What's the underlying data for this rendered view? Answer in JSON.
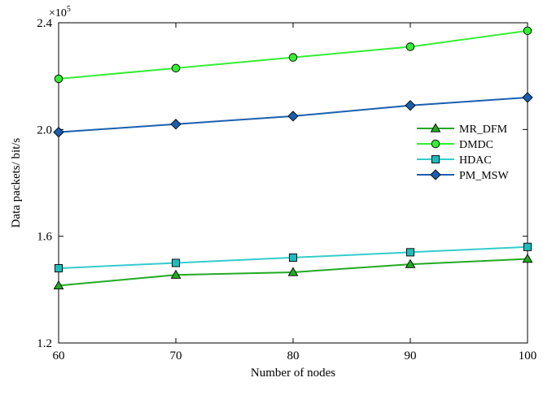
{
  "chart_data": {
    "type": "line",
    "title": "",
    "xlabel": "Number of nodes",
    "ylabel": "Data packets/ bit/s",
    "y_multiplier_base": "×10",
    "y_multiplier_exponent": "5",
    "x": [
      60,
      70,
      80,
      90,
      100
    ],
    "xlim": [
      60,
      100
    ],
    "ylim": [
      1.2,
      2.4
    ],
    "x_ticks": [
      "60",
      "70",
      "80",
      "90",
      "100"
    ],
    "y_ticks": [
      "1.2",
      "1.6",
      "2.0",
      "2.4"
    ],
    "y_tick_values": [
      1.2,
      1.6,
      2.0,
      2.4
    ],
    "grid": false,
    "legend_position": "right",
    "series": [
      {
        "name": "MR_DFM",
        "values": [
          1.415,
          1.455,
          1.465,
          1.495,
          1.515
        ],
        "color": "#22aa22",
        "marker_fill": "#22aa22",
        "marker": "triangle"
      },
      {
        "name": "DMDC",
        "values": [
          2.19,
          2.23,
          2.27,
          2.31,
          2.37
        ],
        "color": "#33ee33",
        "marker_fill": "#33ee33",
        "marker": "circle"
      },
      {
        "name": "HDAC",
        "values": [
          1.48,
          1.5,
          1.52,
          1.54,
          1.56
        ],
        "color": "#33cccc",
        "marker_fill": "#22bbbb",
        "marker": "square"
      },
      {
        "name": "PM_MSW",
        "values": [
          1.99,
          2.02,
          2.05,
          2.09,
          2.12
        ],
        "color": "#1a5fb0",
        "marker_fill": "#1a5fb0",
        "marker": "diamond"
      }
    ]
  }
}
